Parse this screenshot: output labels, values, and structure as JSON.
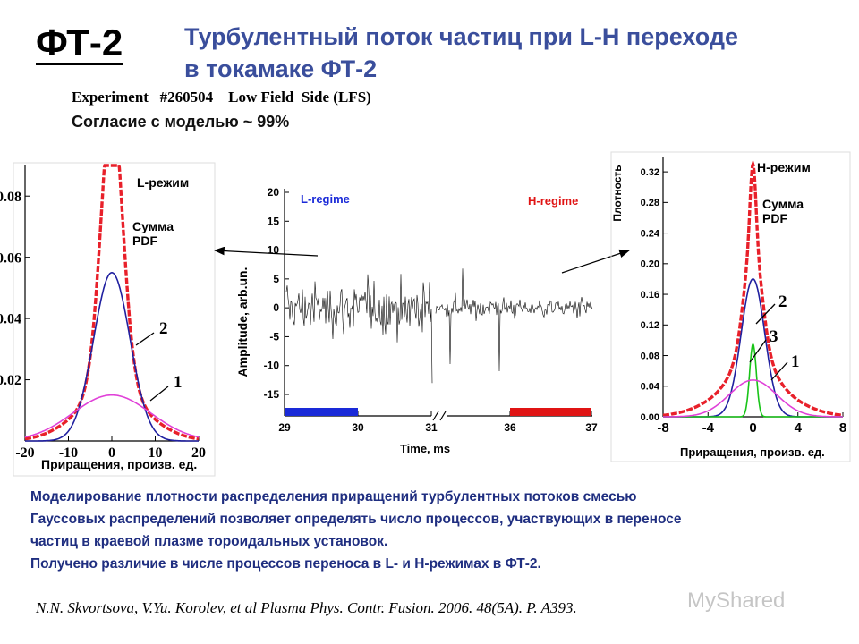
{
  "slide": {
    "badge": "ФТ-2",
    "title_line1": "Турбулентный поток частиц при L-H переходе",
    "title_line2": "в токамаке ФТ-2",
    "experiment_line": "Experiment   #260504    Low Field  Side (LFS)",
    "agreement": "Согласие с моделью ~ 99%",
    "paragraph": [
      "Моделирование плотности распределения приращений турбулентных потоков смесью",
      "Гауссовых распределений позволяет определять число процессов, участвующих в переносе",
      "частиц в краевой плазме тороидальных установок.",
      "Получено различие в числе процессов переноса в L- и H-режимах в ФТ-2."
    ],
    "reference": "N.N. Skvortsova, V.Yu. Korolev, et al Plasma Phys. Contr. Fusion. 2006.  48(5A). P. A393.",
    "watermark": "MyShared"
  },
  "chart_data": [
    {
      "type": "line",
      "panel": "left",
      "legend_title": "L-режим",
      "legend_sum": "Сумма PDF",
      "xlabel": "Приращения, произв. ед.",
      "ylabel": "",
      "xlim": [
        -20,
        20
      ],
      "ylim": [
        0,
        0.09
      ],
      "xticks": [
        -20,
        -10,
        0,
        10,
        20
      ],
      "xtick_labels": [
        "-20",
        "-10",
        "0",
        "10",
        "20"
      ],
      "yticks": [
        0.02,
        0.04,
        0.06,
        0.08
      ],
      "ytick_labels": [
        "0.02",
        "0.04",
        "0.06",
        "0.08"
      ],
      "curve_labels": [
        "1",
        "2"
      ],
      "series": [
        {
          "role": "sum",
          "color": "#e8202a",
          "style": "dashed-thick",
          "components": [
            [
              0.05,
              0,
              2.2
            ],
            [
              0.045,
              0,
              3.0
            ],
            [
              0.015,
              0,
              8.0
            ]
          ]
        },
        {
          "role": "component",
          "label": "2",
          "color": "#2020a0",
          "components": [
            [
              0.055,
              0,
              4.2
            ]
          ]
        },
        {
          "role": "component",
          "label": "1",
          "color": "#e040d8",
          "components": [
            [
              0.015,
              0,
              9.0
            ]
          ]
        }
      ]
    },
    {
      "type": "line",
      "panel": "center",
      "legend_L": "L-regime",
      "legend_H": "H-regime",
      "xlabel": "Time, ms",
      "ylabel": "Amplitude, arb.un.",
      "ylim": [
        -15,
        20
      ],
      "yticks": [
        -15,
        -10,
        -5,
        0,
        5,
        10,
        15,
        20
      ],
      "ytick_labels": [
        "-15",
        "-10",
        "-5",
        "0",
        "5",
        "10",
        "15",
        "20"
      ],
      "xtick_labels": [
        "29",
        "30",
        "31",
        "36",
        "37"
      ],
      "axis_break_between": [
        "31",
        "36"
      ],
      "regime_bars": [
        {
          "name": "L",
          "from": 29.0,
          "to": 30.0,
          "color": "#1a2ad8"
        },
        {
          "name": "H",
          "from": 36.0,
          "to": 37.0,
          "color": "#e01414"
        }
      ],
      "signal_std": {
        "L": 3.0,
        "H": 1.2
      }
    },
    {
      "type": "line",
      "panel": "right",
      "legend_title": "H-режим",
      "legend_sum": "Сумма PDF",
      "ylabel": "Плотность",
      "xlabel": "Приращения, произв. ед.",
      "xlim": [
        -8,
        8
      ],
      "ylim": [
        0,
        0.34
      ],
      "xticks": [
        -8,
        -4,
        0,
        4,
        8
      ],
      "xtick_labels": [
        "-8",
        "-4",
        "0",
        "4",
        "8"
      ],
      "yticks": [
        0.0,
        0.04,
        0.08,
        0.12,
        0.16,
        0.2,
        0.24,
        0.28,
        0.32
      ],
      "ytick_labels": [
        "0.00",
        "0.04",
        "0.08",
        "0.12",
        "0.16",
        "0.20",
        "0.24",
        "0.28",
        "0.32"
      ],
      "curve_labels": [
        "1",
        "2",
        "3"
      ],
      "series": [
        {
          "role": "sum",
          "color": "#e8202a",
          "style": "dashed-thick",
          "components": [
            [
              0.1,
              0,
              0.25
            ],
            [
              0.14,
              0,
              0.75
            ],
            [
              0.045,
              0,
              1.5
            ],
            [
              0.045,
              0,
              3.2
            ]
          ]
        },
        {
          "role": "component",
          "label": "2",
          "color": "#2020a0",
          "components": [
            [
              0.18,
              0,
              1.05
            ]
          ]
        },
        {
          "role": "component",
          "label": "3",
          "color": "#18c418",
          "components": [
            [
              0.095,
              0,
              0.3
            ]
          ]
        },
        {
          "role": "component",
          "label": "1",
          "color": "#e040d8",
          "components": [
            [
              0.048,
              0,
              2.1
            ]
          ]
        }
      ]
    }
  ]
}
